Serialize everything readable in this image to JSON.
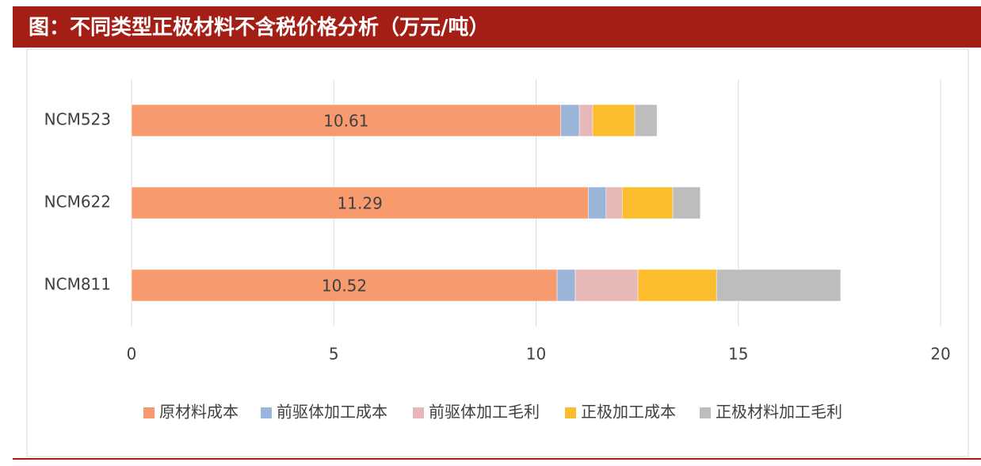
{
  "chart_data": {
    "type": "stacked_barh",
    "title": "图：不同类型正极材料不含税价格分析（万元/吨）",
    "categories": [
      "NCM523",
      "NCM622",
      "NCM811"
    ],
    "series": [
      {
        "name": "原材料成本",
        "color": "#f79a6e",
        "values": [
          10.61,
          11.29,
          10.52
        ],
        "data_labels": true
      },
      {
        "name": "前驱体加工成本",
        "color": "#9ab5d8",
        "values": [
          0.46,
          0.44,
          0.45
        ]
      },
      {
        "name": "前驱体加工毛利",
        "color": "#e6b8b8",
        "values": [
          0.33,
          0.4,
          1.55
        ]
      },
      {
        "name": "正极加工成本",
        "color": "#fbbd2e",
        "values": [
          1.04,
          1.25,
          1.94
        ]
      },
      {
        "name": "正极材料加工毛利",
        "color": "#bdbdbd",
        "values": [
          0.55,
          0.68,
          3.07
        ]
      }
    ],
    "xlim": [
      0,
      20
    ],
    "xticks": [
      0,
      5,
      10,
      15,
      20
    ],
    "grid": true,
    "legend": "bottom"
  }
}
